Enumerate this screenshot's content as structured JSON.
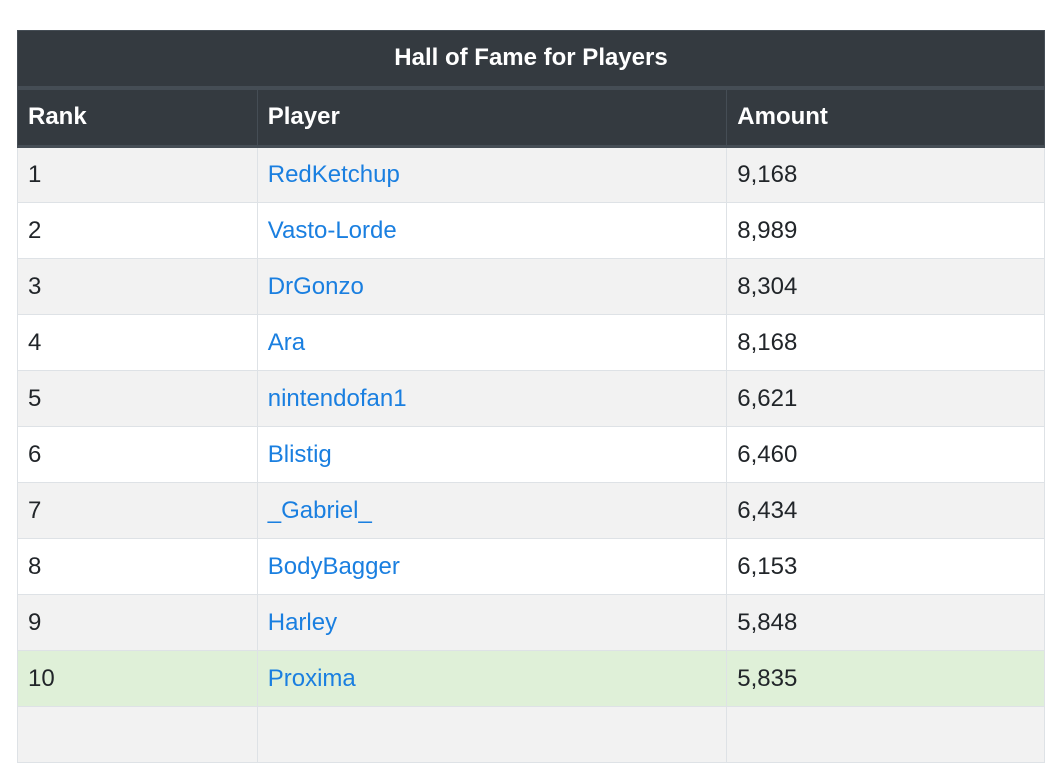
{
  "table": {
    "title": "Hall of Fame for Players",
    "columns": [
      "Rank",
      "Player",
      "Amount"
    ],
    "rows": [
      [
        "1",
        "RedKetchup",
        "9,168"
      ],
      [
        "2",
        "Vasto-Lorde",
        "8,989"
      ],
      [
        "3",
        "DrGonzo",
        "8,304"
      ],
      [
        "4",
        "Ara",
        "8,168"
      ],
      [
        "5",
        "nintendofan1",
        "6,621"
      ],
      [
        "6",
        "Blistig",
        "6,460"
      ],
      [
        "7",
        "_Gabriel_",
        "6,434"
      ],
      [
        "8",
        "BodyBagger",
        "6,153"
      ],
      [
        "9",
        "Harley",
        "5,848"
      ],
      [
        "10",
        "Proxima",
        "5,835"
      ]
    ],
    "highlighted_row": 9
  }
}
